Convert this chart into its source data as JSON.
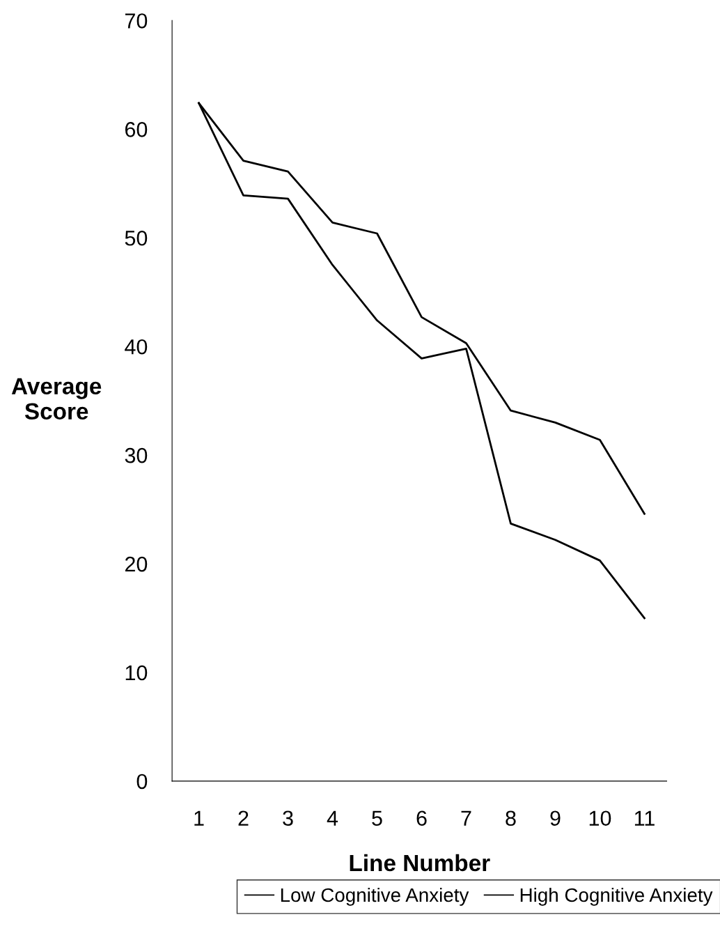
{
  "chart_data": {
    "type": "line",
    "xlabel": "Line Number",
    "ylabel": "Average\nScore",
    "categories": [
      "1",
      "2",
      "3",
      "4",
      "5",
      "6",
      "7",
      "8",
      "9",
      "10",
      "11"
    ],
    "series": [
      {
        "name": "Low Cognitive Anxiety",
        "color": "#000000",
        "values": [
          62.4,
          57.1,
          56.1,
          51.4,
          50.4,
          42.7,
          40.3,
          34.1,
          33.0,
          31.4,
          24.6
        ]
      },
      {
        "name": "High Cognitive Anxiety",
        "color": "#000000",
        "values": [
          62.4,
          53.9,
          53.6,
          47.5,
          42.4,
          38.9,
          39.8,
          23.7,
          22.2,
          20.3,
          15.0
        ]
      }
    ],
    "ylim": [
      0,
      70
    ],
    "yticks": [
      0,
      10,
      20,
      30,
      40,
      50,
      60,
      70
    ],
    "grid": false,
    "legend": "bottom",
    "marker": "none",
    "line_style": "solid"
  }
}
